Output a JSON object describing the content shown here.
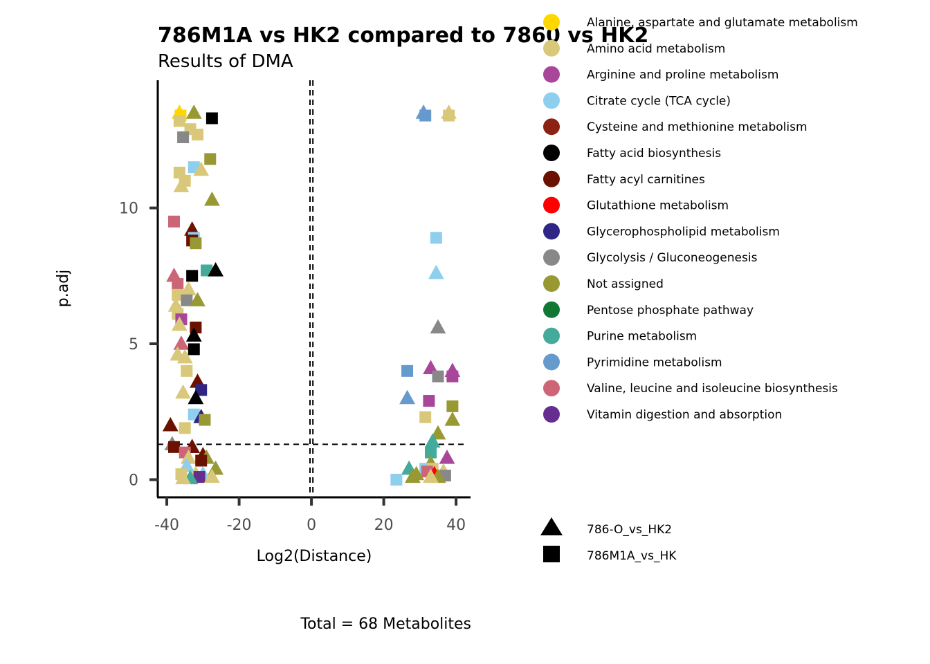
{
  "chart_data": {
    "type": "scatter",
    "title": "786M1A vs HK2 compared to 7860 vs HK2",
    "subtitle": "Results of DMA",
    "xlabel": "Log2(Distance)",
    "ylabel": "p.adj",
    "caption": "Total = 68 Metabolites",
    "xlim": [
      -42.5,
      44
    ],
    "ylim": [
      -0.65,
      14.7
    ],
    "xticks": [
      -40,
      -20,
      0,
      20,
      40
    ],
    "yticks": [
      0,
      5,
      10
    ],
    "vlines": [
      -0.4,
      0.4
    ],
    "hline": 1.3,
    "legend_position": "right",
    "color_legend": [
      {
        "label": "Alanine, aspartate and glutamate metabolism",
        "color": "#FFD700"
      },
      {
        "label": "Amino acid metabolism",
        "color": "#D9C87A"
      },
      {
        "label": "Arginine and proline metabolism",
        "color": "#A8469A"
      },
      {
        "label": "Citrate cycle (TCA cycle)",
        "color": "#8ECEEE"
      },
      {
        "label": "Cysteine and methionine metabolism",
        "color": "#8B2214"
      },
      {
        "label": "Fatty acid biosynthesis",
        "color": "#000000"
      },
      {
        "label": "Fatty acyl carnitines",
        "color": "#6B1100"
      },
      {
        "label": "Glutathione metabolism",
        "color": "#FF0000"
      },
      {
        "label": "Glycerophospholipid metabolism",
        "color": "#2E2585"
      },
      {
        "label": "Glycolysis / Gluconeogenesis",
        "color": "#888888"
      },
      {
        "label": "Not assigned",
        "color": "#999933"
      },
      {
        "label": "Pentose phosphate pathway",
        "color": "#117733"
      },
      {
        "label": "Purine metabolism",
        "color": "#44AA99"
      },
      {
        "label": "Pyrimidine metabolism",
        "color": "#6699CC"
      },
      {
        "label": "Valine, leucine and isoleucine biosynthesis",
        "color": "#CC6677"
      },
      {
        "label": "Vitamin digestion and absorption",
        "color": "#662D91"
      }
    ],
    "shape_legend": [
      {
        "label": "786-O_vs_HK2",
        "shape": "triangle"
      },
      {
        "label": "786M1A_vs_HK",
        "shape": "square"
      }
    ],
    "points": [
      {
        "x": -36.5,
        "y": 13.5,
        "shape": "triangle",
        "color": "#FFD700"
      },
      {
        "x": -36.2,
        "y": 13.4,
        "shape": "square",
        "color": "#FFD700"
      },
      {
        "x": -36.5,
        "y": 13.2,
        "shape": "square",
        "color": "#D9C87A"
      },
      {
        "x": -32.5,
        "y": 13.5,
        "shape": "triangle",
        "color": "#999933"
      },
      {
        "x": -33.5,
        "y": 12.9,
        "shape": "square",
        "color": "#D9C87A"
      },
      {
        "x": -31.5,
        "y": 12.7,
        "shape": "square",
        "color": "#D9C87A"
      },
      {
        "x": -27.5,
        "y": 13.3,
        "shape": "square",
        "color": "#000000"
      },
      {
        "x": -35.5,
        "y": 12.6,
        "shape": "square",
        "color": "#888888"
      },
      {
        "x": -28.0,
        "y": 11.8,
        "shape": "square",
        "color": "#999933"
      },
      {
        "x": -32.5,
        "y": 11.5,
        "shape": "square",
        "color": "#8ECEEE"
      },
      {
        "x": -30.5,
        "y": 11.4,
        "shape": "triangle",
        "color": "#D9C87A"
      },
      {
        "x": -36.5,
        "y": 11.3,
        "shape": "square",
        "color": "#D9C87A"
      },
      {
        "x": -35.0,
        "y": 11.0,
        "shape": "square",
        "color": "#D9C87A"
      },
      {
        "x": -36.0,
        "y": 10.8,
        "shape": "triangle",
        "color": "#D9C87A"
      },
      {
        "x": -27.5,
        "y": 10.3,
        "shape": "triangle",
        "color": "#999933"
      },
      {
        "x": -38.0,
        "y": 9.5,
        "shape": "square",
        "color": "#CC6677"
      },
      {
        "x": -33.0,
        "y": 9.2,
        "shape": "triangle",
        "color": "#6B1100"
      },
      {
        "x": -32.5,
        "y": 8.9,
        "shape": "square",
        "color": "#8ECEEE"
      },
      {
        "x": -33.0,
        "y": 8.8,
        "shape": "square",
        "color": "#6B1100"
      },
      {
        "x": -32.0,
        "y": 8.7,
        "shape": "square",
        "color": "#999933"
      },
      {
        "x": -29.0,
        "y": 7.7,
        "shape": "square",
        "color": "#44AA99"
      },
      {
        "x": -26.5,
        "y": 7.7,
        "shape": "triangle",
        "color": "#000000"
      },
      {
        "x": -38.0,
        "y": 7.5,
        "shape": "triangle",
        "color": "#CC6677"
      },
      {
        "x": -33.0,
        "y": 7.5,
        "shape": "square",
        "color": "#000000"
      },
      {
        "x": -37.0,
        "y": 7.2,
        "shape": "square",
        "color": "#CC6677"
      },
      {
        "x": -34.0,
        "y": 7.0,
        "shape": "triangle",
        "color": "#D9C87A"
      },
      {
        "x": -37.0,
        "y": 6.8,
        "shape": "square",
        "color": "#D9C87A"
      },
      {
        "x": -34.5,
        "y": 6.6,
        "shape": "square",
        "color": "#888888"
      },
      {
        "x": -31.5,
        "y": 6.6,
        "shape": "triangle",
        "color": "#999933"
      },
      {
        "x": -37.5,
        "y": 6.4,
        "shape": "triangle",
        "color": "#D9C87A"
      },
      {
        "x": -37.0,
        "y": 6.1,
        "shape": "square",
        "color": "#D9C87A"
      },
      {
        "x": -36.0,
        "y": 5.9,
        "shape": "square",
        "color": "#A8469A"
      },
      {
        "x": -36.5,
        "y": 5.7,
        "shape": "triangle",
        "color": "#D9C87A"
      },
      {
        "x": -32.0,
        "y": 5.6,
        "shape": "square",
        "color": "#6B1100"
      },
      {
        "x": -32.5,
        "y": 5.3,
        "shape": "triangle",
        "color": "#000000"
      },
      {
        "x": -36.0,
        "y": 5.0,
        "shape": "triangle",
        "color": "#CC6677"
      },
      {
        "x": -32.5,
        "y": 4.8,
        "shape": "square",
        "color": "#000000"
      },
      {
        "x": -37.0,
        "y": 4.6,
        "shape": "triangle",
        "color": "#D9C87A"
      },
      {
        "x": -35.0,
        "y": 4.5,
        "shape": "triangle",
        "color": "#D9C87A"
      },
      {
        "x": -34.5,
        "y": 4.0,
        "shape": "square",
        "color": "#D9C87A"
      },
      {
        "x": -31.5,
        "y": 3.6,
        "shape": "triangle",
        "color": "#6B1100"
      },
      {
        "x": -30.5,
        "y": 3.3,
        "shape": "square",
        "color": "#2E2585"
      },
      {
        "x": -35.5,
        "y": 3.2,
        "shape": "triangle",
        "color": "#D9C87A"
      },
      {
        "x": -32.0,
        "y": 3.0,
        "shape": "triangle",
        "color": "#000000"
      },
      {
        "x": -32.5,
        "y": 2.4,
        "shape": "square",
        "color": "#8ECEEE"
      },
      {
        "x": -30.5,
        "y": 2.3,
        "shape": "triangle",
        "color": "#2E2585"
      },
      {
        "x": -29.5,
        "y": 2.2,
        "shape": "square",
        "color": "#999933"
      },
      {
        "x": -39.0,
        "y": 2.0,
        "shape": "triangle",
        "color": "#6B1100"
      },
      {
        "x": -35.0,
        "y": 1.9,
        "shape": "square",
        "color": "#D9C87A"
      },
      {
        "x": -38.5,
        "y": 1.3,
        "shape": "triangle",
        "color": "#888888"
      },
      {
        "x": -38.0,
        "y": 1.2,
        "shape": "square",
        "color": "#6B1100"
      },
      {
        "x": -33.0,
        "y": 1.2,
        "shape": "triangle",
        "color": "#6B1100"
      },
      {
        "x": -35.0,
        "y": 1.0,
        "shape": "square",
        "color": "#CC6677"
      },
      {
        "x": -30.0,
        "y": 0.9,
        "shape": "triangle",
        "color": "#6B1100"
      },
      {
        "x": -34.0,
        "y": 0.8,
        "shape": "triangle",
        "color": "#D9C87A"
      },
      {
        "x": -29.0,
        "y": 0.8,
        "shape": "triangle",
        "color": "#999933"
      },
      {
        "x": -30.5,
        "y": 0.7,
        "shape": "square",
        "color": "#6B1100"
      },
      {
        "x": -34.5,
        "y": 0.5,
        "shape": "triangle",
        "color": "#8ECEEE"
      },
      {
        "x": -26.5,
        "y": 0.4,
        "shape": "triangle",
        "color": "#999933"
      },
      {
        "x": -36.0,
        "y": 0.2,
        "shape": "square",
        "color": "#D9C87A"
      },
      {
        "x": -32.0,
        "y": 0.2,
        "shape": "triangle",
        "color": "#D9C87A"
      },
      {
        "x": -30.0,
        "y": 0.2,
        "shape": "triangle",
        "color": "#8ECEEE"
      },
      {
        "x": -31.0,
        "y": 0.1,
        "shape": "square",
        "color": "#662D91"
      },
      {
        "x": -33.5,
        "y": 0.05,
        "shape": "triangle",
        "color": "#44AA99"
      },
      {
        "x": -35.5,
        "y": 0.05,
        "shape": "triangle",
        "color": "#D9C87A"
      },
      {
        "x": -27.5,
        "y": 0.1,
        "shape": "triangle",
        "color": "#D9C87A"
      },
      {
        "x": 31.0,
        "y": 13.5,
        "shape": "triangle",
        "color": "#6699CC"
      },
      {
        "x": 31.5,
        "y": 13.4,
        "shape": "square",
        "color": "#6699CC"
      },
      {
        "x": 38.0,
        "y": 13.5,
        "shape": "triangle",
        "color": "#D9C87A"
      },
      {
        "x": 38.0,
        "y": 13.4,
        "shape": "square",
        "color": "#D9C87A"
      },
      {
        "x": 34.5,
        "y": 8.9,
        "shape": "square",
        "color": "#8ECEEE"
      },
      {
        "x": 34.5,
        "y": 7.6,
        "shape": "triangle",
        "color": "#8ECEEE"
      },
      {
        "x": 35.0,
        "y": 5.6,
        "shape": "triangle",
        "color": "#888888"
      },
      {
        "x": 26.5,
        "y": 4.0,
        "shape": "square",
        "color": "#6699CC"
      },
      {
        "x": 33.0,
        "y": 4.1,
        "shape": "triangle",
        "color": "#A8469A"
      },
      {
        "x": 39.0,
        "y": 4.0,
        "shape": "triangle",
        "color": "#A8469A"
      },
      {
        "x": 39.0,
        "y": 3.8,
        "shape": "square",
        "color": "#A8469A"
      },
      {
        "x": 35.0,
        "y": 3.8,
        "shape": "square",
        "color": "#888888"
      },
      {
        "x": 26.5,
        "y": 3.0,
        "shape": "triangle",
        "color": "#6699CC"
      },
      {
        "x": 32.5,
        "y": 2.9,
        "shape": "square",
        "color": "#A8469A"
      },
      {
        "x": 39.0,
        "y": 2.7,
        "shape": "square",
        "color": "#999933"
      },
      {
        "x": 31.5,
        "y": 2.3,
        "shape": "square",
        "color": "#D9C87A"
      },
      {
        "x": 39.0,
        "y": 2.2,
        "shape": "triangle",
        "color": "#999933"
      },
      {
        "x": 35.0,
        "y": 1.7,
        "shape": "triangle",
        "color": "#999933"
      },
      {
        "x": 33.5,
        "y": 1.4,
        "shape": "triangle",
        "color": "#44AA99"
      },
      {
        "x": 33.0,
        "y": 1.0,
        "shape": "square",
        "color": "#44AA99"
      },
      {
        "x": 37.5,
        "y": 0.8,
        "shape": "triangle",
        "color": "#A8469A"
      },
      {
        "x": 33.0,
        "y": 0.6,
        "shape": "triangle",
        "color": "#999933"
      },
      {
        "x": 27.0,
        "y": 0.4,
        "shape": "triangle",
        "color": "#44AA99"
      },
      {
        "x": 31.5,
        "y": 0.4,
        "shape": "square",
        "color": "#8ECEEE"
      },
      {
        "x": 33.5,
        "y": 0.4,
        "shape": "square",
        "color": "#D9C87A"
      },
      {
        "x": 36.5,
        "y": 0.3,
        "shape": "triangle",
        "color": "#D9C87A"
      },
      {
        "x": 32.0,
        "y": 0.3,
        "shape": "square",
        "color": "#CC6677"
      },
      {
        "x": 29.0,
        "y": 0.2,
        "shape": "triangle",
        "color": "#999933"
      },
      {
        "x": 34.0,
        "y": 0.2,
        "shape": "triangle",
        "color": "#FF0000"
      },
      {
        "x": 37.0,
        "y": 0.15,
        "shape": "square",
        "color": "#888888"
      },
      {
        "x": 35.0,
        "y": 0.1,
        "shape": "triangle",
        "color": "#999933"
      },
      {
        "x": 33.0,
        "y": 0.1,
        "shape": "triangle",
        "color": "#D9C87A"
      },
      {
        "x": 23.5,
        "y": 0.0,
        "shape": "square",
        "color": "#8ECEEE"
      },
      {
        "x": 28.0,
        "y": 0.1,
        "shape": "triangle",
        "color": "#999933"
      }
    ]
  }
}
